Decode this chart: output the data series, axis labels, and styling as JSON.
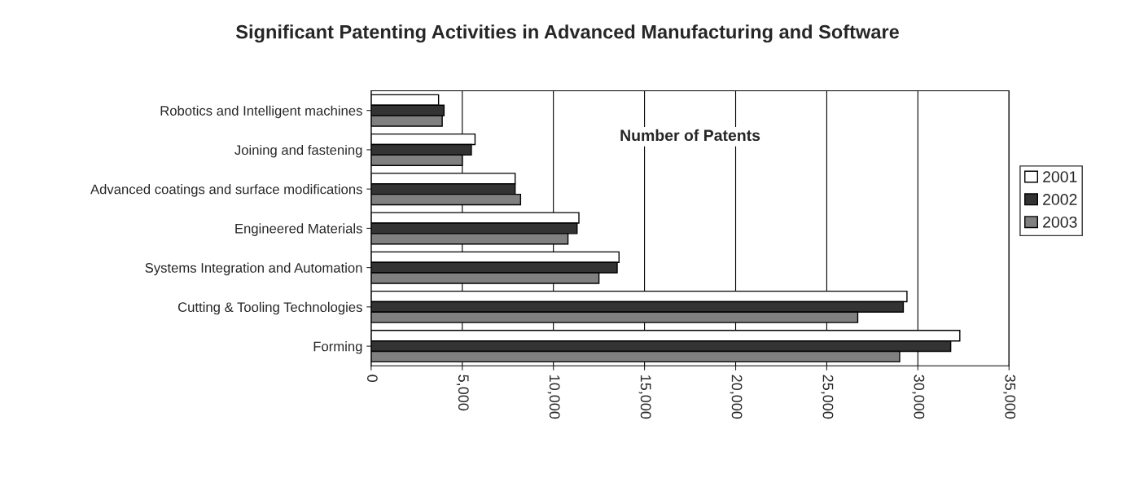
{
  "chart_data": {
    "type": "bar",
    "orientation": "horizontal",
    "title": "Significant Patenting Activities in Advanced Manufacturing and Software",
    "xlabel": "Number of Patents",
    "categories": [
      "Robotics and Intelligent machines",
      "Joining and fastening",
      "Advanced coatings and surface modifications",
      "Engineered Materials",
      "Systems Integration and Automation",
      "Cutting & Tooling Technologies",
      "Forming"
    ],
    "series": [
      {
        "name": "2001",
        "color": "#ffffff",
        "values": [
          3700,
          5700,
          7900,
          11400,
          13600,
          29400,
          32300
        ]
      },
      {
        "name": "2002",
        "color": "#333333",
        "values": [
          4000,
          5500,
          7900,
          11300,
          13500,
          29200,
          31800
        ]
      },
      {
        "name": "2003",
        "color": "#808080",
        "values": [
          3900,
          5000,
          8200,
          10800,
          12500,
          26700,
          29000
        ]
      }
    ],
    "xlim": [
      0,
      35000
    ],
    "xticks": [
      {
        "value": 0,
        "label": "0"
      },
      {
        "value": 5000,
        "label": "5,000"
      },
      {
        "value": 10000,
        "label": "10,000"
      },
      {
        "value": 15000,
        "label": "15,000"
      },
      {
        "value": 20000,
        "label": "20,000"
      },
      {
        "value": 25000,
        "label": "25,000"
      },
      {
        "value": 30000,
        "label": "30,000"
      },
      {
        "value": 35000,
        "label": "35,000"
      }
    ],
    "grid": "x",
    "legend": "right"
  }
}
